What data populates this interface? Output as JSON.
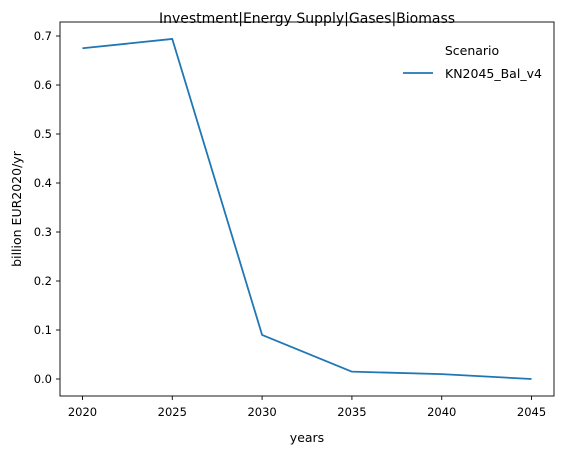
{
  "chart_data": {
    "type": "line",
    "title": "Investment|Energy Supply|Gases|Biomass",
    "xlabel": "years",
    "ylabel": "billion EUR2020/yr",
    "x": [
      2020,
      2025,
      2030,
      2035,
      2040,
      2045
    ],
    "xticks": [
      2020,
      2025,
      2030,
      2035,
      2040,
      2045
    ],
    "xlim": [
      2018.75,
      2046.25
    ],
    "ylim": [
      -0.0347,
      0.7286
    ],
    "yticks": [
      0.0,
      0.1,
      0.2,
      0.3,
      0.4,
      0.5,
      0.6,
      0.7
    ],
    "ytick_labels": [
      "0.0",
      "0.1",
      "0.2",
      "0.3",
      "0.4",
      "0.5",
      "0.6",
      "0.7"
    ],
    "grid": false,
    "legend": {
      "title": "Scenario",
      "placement": "top-right"
    },
    "series": [
      {
        "name": "KN2045_Bal_v4",
        "color": "#1f77b4",
        "values": [
          0.675,
          0.694,
          0.09,
          0.015,
          0.01,
          0.0
        ]
      }
    ]
  }
}
